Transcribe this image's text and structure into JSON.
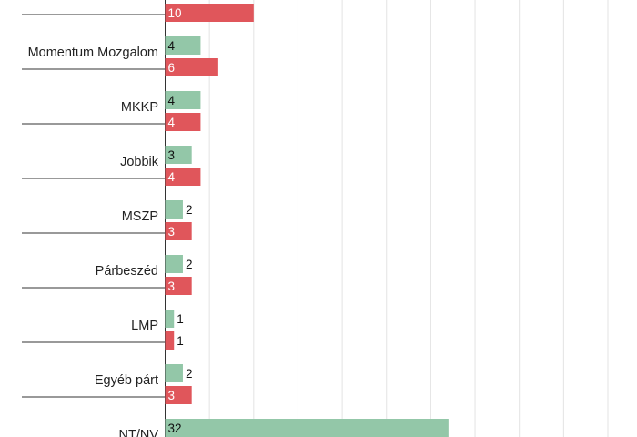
{
  "chart_data": {
    "type": "bar",
    "orientation": "horizontal",
    "categories": [
      "",
      "Momentum Mozgalom",
      "MKKP",
      "Jobbik",
      "MSZP",
      "Párbeszéd",
      "LMP",
      "Egyéb párt",
      "NT/NV"
    ],
    "series": [
      {
        "color": "#93c7a8",
        "values": [
          null,
          4,
          4,
          3,
          2,
          2,
          1,
          2,
          32
        ]
      },
      {
        "color": "#e0565b",
        "values": [
          10,
          6,
          4,
          4,
          3,
          3,
          1,
          3,
          null
        ]
      }
    ],
    "xlim": [
      0,
      50
    ],
    "grid": true,
    "title": "",
    "xlabel": "",
    "ylabel": "",
    "colors": {
      "grid": "#e3e3e3",
      "separator": "#333333",
      "label_inside": "#ffffff",
      "label_inside_green": "#111111",
      "label_outside": "#111111"
    }
  }
}
